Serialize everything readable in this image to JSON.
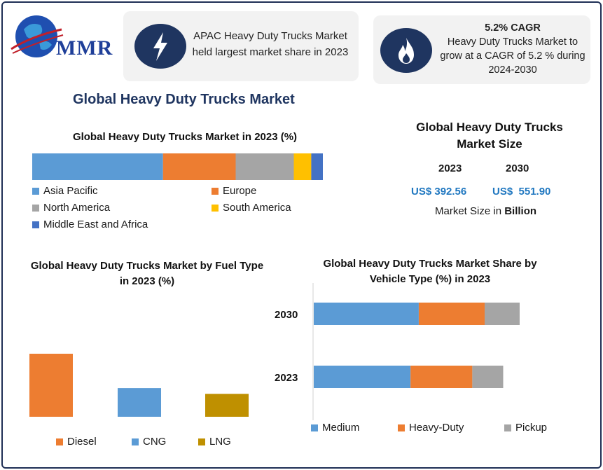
{
  "logo": {
    "text": "MMR"
  },
  "info_boxes": {
    "apac": {
      "icon": "lightning-bolt-icon",
      "text": "APAC Heavy Duty Trucks Market held largest market share in 2023"
    },
    "cagr": {
      "icon": "flame-icon",
      "headline": "5.2% CAGR",
      "text": "Heavy Duty Trucks Market to grow at a CAGR of 5.2 % during 2024-2030"
    }
  },
  "main_title": "Global Heavy Duty Trucks Market",
  "market_size": {
    "title": "Global Heavy Duty Trucks Market Size",
    "year_a": "2023",
    "year_b": "2030",
    "value_a": "US$ 392.56",
    "value_b": "US$  551.90",
    "unit_prefix": "Market Size in ",
    "unit_bold": "Billion"
  },
  "colors": {
    "blue": "#5b9bd5",
    "orange": "#ed7d31",
    "gray": "#a5a5a5",
    "yellow": "#ffc000",
    "darkblue": "#4472c4",
    "gold": "#bf9000",
    "navy": "#1f3560"
  },
  "chart_data": [
    {
      "type": "bar",
      "orientation": "horizontal-stacked",
      "title": "Global Heavy Duty Trucks Market in 2023 (%)",
      "series": [
        {
          "name": "Asia Pacific",
          "value": 45,
          "color": "#5b9bd5"
        },
        {
          "name": "Europe",
          "value": 25,
          "color": "#ed7d31"
        },
        {
          "name": "North America",
          "value": 20,
          "color": "#a5a5a5"
        },
        {
          "name": "South America",
          "value": 6,
          "color": "#ffc000"
        },
        {
          "name": "Middle East and Africa",
          "value": 4,
          "color": "#4472c4"
        }
      ],
      "legend": "bottom"
    },
    {
      "type": "bar",
      "title": "Global Heavy Duty Trucks Market by Fuel Type in 2023 (%)",
      "categories": [
        "Diesel",
        "CNG",
        "LNG"
      ],
      "values": [
        55,
        25,
        20
      ],
      "colors": [
        "#ed7d31",
        "#5b9bd5",
        "#bf9000"
      ],
      "legend": "bottom"
    },
    {
      "type": "bar",
      "orientation": "horizontal-stacked",
      "title": "Global Heavy Duty Trucks Market Share by Vehicle Type (%) in 2023",
      "categories": [
        "2030",
        "2023"
      ],
      "series": [
        {
          "name": "Medium",
          "values": [
            51,
            47
          ],
          "color": "#5b9bd5"
        },
        {
          "name": "Heavy-Duty",
          "values": [
            32,
            30
          ],
          "color": "#ed7d31"
        },
        {
          "name": "Pickup",
          "values": [
            17,
            15
          ],
          "color": "#a5a5a5"
        }
      ],
      "legend": "bottom"
    }
  ]
}
